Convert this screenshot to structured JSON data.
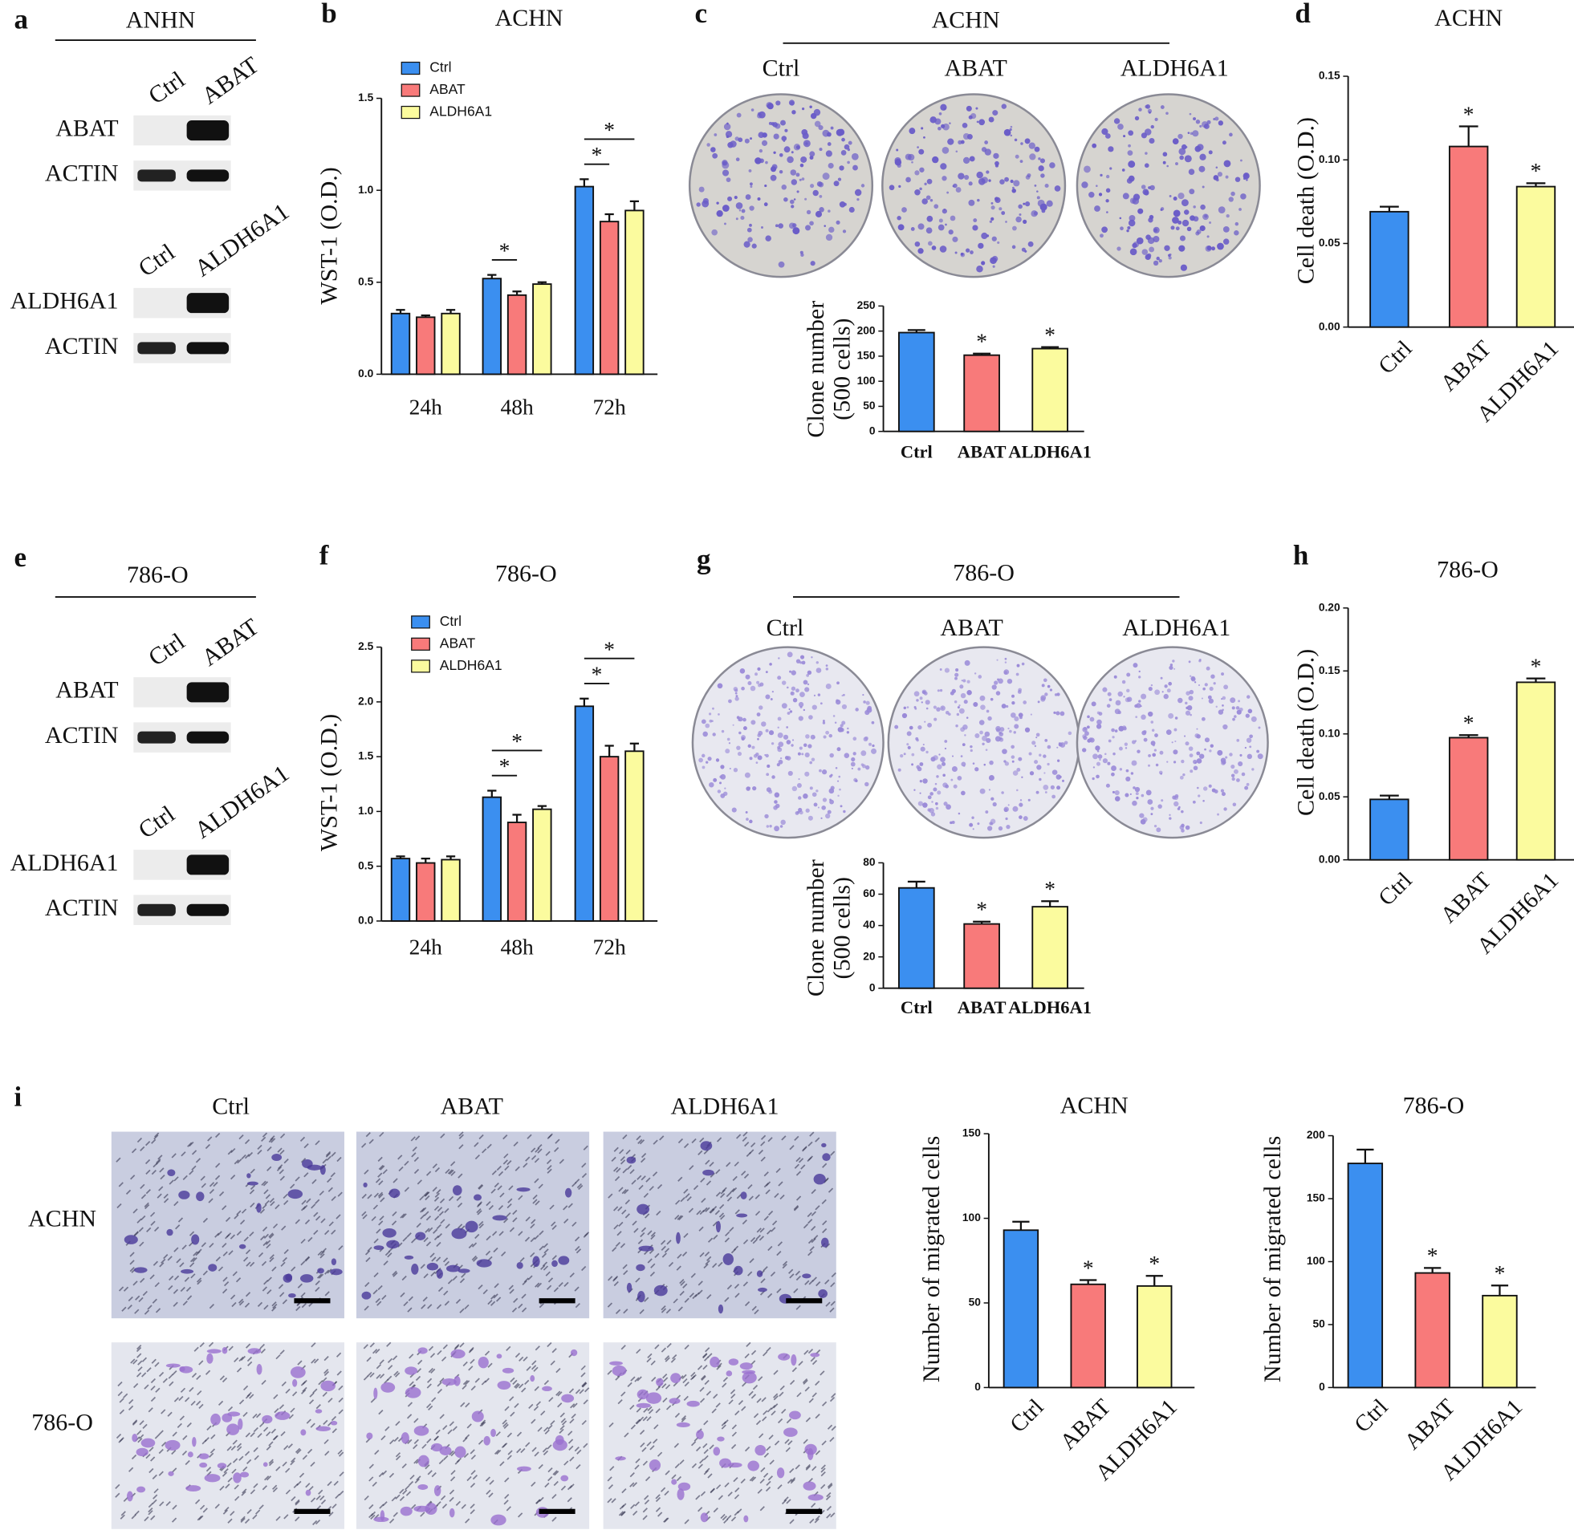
{
  "figure": {
    "letters": [
      "a",
      "b",
      "c",
      "d",
      "e",
      "f",
      "g",
      "h",
      "i"
    ],
    "blots": [
      {
        "title": "ANHN",
        "lanes1": [
          "Ctrl",
          "ABAT"
        ],
        "rows1": [
          "ABAT",
          "ACTIN"
        ],
        "lanes2": [
          "Ctrl",
          "ALDH6A1"
        ],
        "rows2": [
          "ALDH6A1",
          "ACTIN"
        ]
      },
      {
        "title": "786-O",
        "lanes1": [
          "Ctrl",
          "ABAT"
        ],
        "rows1": [
          "ABAT",
          "ACTIN"
        ],
        "lanes2": [
          "Ctrl",
          "ALDH6A1"
        ],
        "rows2": [
          "ALDH6A1",
          "ACTIN"
        ]
      }
    ],
    "plates": [
      {
        "title": "ACHN",
        "labels": [
          "Ctrl",
          "ABAT",
          "ALDH6A1"
        ]
      },
      {
        "title": "786-O",
        "labels": [
          "Ctrl",
          "ABAT",
          "ALDH6A1"
        ]
      }
    ],
    "migration": {
      "columns": [
        "Ctrl",
        "ABAT",
        "ALDH6A1"
      ],
      "rows": [
        "ACHN",
        "786-O"
      ]
    }
  },
  "chart_data": [
    {
      "type": "bar",
      "title": "ACHN",
      "ylabel": "WST-1 (O.D.)",
      "categories": [
        "24h",
        "48h",
        "72h"
      ],
      "series": [
        {
          "name": "Ctrl",
          "color": "#3b8ff0",
          "values": [
            0.33,
            0.52,
            1.02
          ],
          "errors": [
            0.02,
            0.02,
            0.04
          ]
        },
        {
          "name": "ABAT",
          "color": "#f87a7a",
          "values": [
            0.31,
            0.43,
            0.83
          ],
          "errors": [
            0.01,
            0.02,
            0.04
          ]
        },
        {
          "name": "ALDH6A1",
          "color": "#fbfb9e",
          "values": [
            0.33,
            0.49,
            0.89
          ],
          "errors": [
            0.02,
            0.01,
            0.05
          ]
        }
      ],
      "ylim": [
        0,
        1.5
      ],
      "yticks": [
        {
          "value": 0,
          "label": "0.0"
        },
        0.5,
        {
          "value": 1,
          "label": "1.0"
        },
        1.5
      ],
      "legend": "upper left",
      "annotations": [
        {
          "text": "*",
          "category": "48h",
          "series": [
            "Ctrl",
            "ABAT"
          ]
        },
        {
          "text": "*",
          "category": "72h",
          "series": [
            "Ctrl",
            "ABAT"
          ]
        },
        {
          "text": "*",
          "category": "72h",
          "series": [
            "Ctrl",
            "ALDH6A1"
          ]
        }
      ]
    },
    {
      "type": "bar",
      "ylabel": [
        "Clone number",
        "(500 cells)"
      ],
      "categories": [
        "Ctrl",
        "ABAT",
        "ALDH6A1"
      ],
      "values": [
        197,
        152,
        165
      ],
      "errors": [
        5,
        3,
        3
      ],
      "colors": [
        "#3b8ff0",
        "#f87a7a",
        "#fbfb9e"
      ],
      "ylim": [
        0,
        250
      ],
      "yticks": [
        0,
        50,
        100,
        150,
        200,
        250
      ],
      "annotations": [
        {
          "text": "*",
          "category": "ABAT"
        },
        {
          "text": "*",
          "category": "ALDH6A1"
        }
      ]
    },
    {
      "type": "bar",
      "title": "ACHN",
      "ylabel": "Cell death (O.D.)",
      "categories": [
        "Ctrl",
        "ABAT",
        "ALDH6A1"
      ],
      "values": [
        0.069,
        0.108,
        0.084
      ],
      "errors": [
        0.003,
        0.012,
        0.002
      ],
      "colors": [
        "#3b8ff0",
        "#f87a7a",
        "#fbfb9e"
      ],
      "ylim": [
        0,
        0.15
      ],
      "yticks": [
        {
          "value": 0,
          "label": "0.00"
        },
        0.05,
        {
          "value": 0.1,
          "label": "0.10"
        },
        0.15
      ],
      "annotations": [
        {
          "text": "*",
          "category": "ABAT"
        },
        {
          "text": "*",
          "category": "ALDH6A1"
        }
      ]
    },
    {
      "type": "bar",
      "title": "786-O",
      "ylabel": "WST-1 (O.D.)",
      "categories": [
        "24h",
        "48h",
        "72h"
      ],
      "series": [
        {
          "name": "Ctrl",
          "color": "#3b8ff0",
          "values": [
            0.57,
            1.13,
            1.96
          ],
          "errors": [
            0.02,
            0.06,
            0.07
          ]
        },
        {
          "name": "ABAT",
          "color": "#f87a7a",
          "values": [
            0.53,
            0.9,
            1.5
          ],
          "errors": [
            0.04,
            0.07,
            0.1
          ]
        },
        {
          "name": "ALDH6A1",
          "color": "#fbfb9e",
          "values": [
            0.56,
            1.02,
            1.55
          ],
          "errors": [
            0.03,
            0.03,
            0.07
          ]
        }
      ],
      "ylim": [
        0,
        2.5
      ],
      "yticks": [
        {
          "value": 0,
          "label": "0.0"
        },
        0.5,
        {
          "value": 1,
          "label": "1.0"
        },
        1.5,
        {
          "value": 2,
          "label": "2.0"
        },
        2.5
      ],
      "legend": "upper left",
      "annotations": [
        {
          "text": "*",
          "category": "48h",
          "series": [
            "Ctrl",
            "ABAT"
          ]
        },
        {
          "text": "*",
          "category": "48h",
          "series": [
            "Ctrl",
            "ALDH6A1"
          ]
        },
        {
          "text": "*",
          "category": "72h",
          "series": [
            "Ctrl",
            "ABAT"
          ]
        },
        {
          "text": "*",
          "category": "72h",
          "series": [
            "Ctrl",
            "ALDH6A1"
          ]
        }
      ]
    },
    {
      "type": "bar",
      "ylabel": [
        "Clone number",
        "(500 cells)"
      ],
      "categories": [
        "Ctrl",
        "ABAT",
        "ALDH6A1"
      ],
      "values": [
        64,
        41,
        52
      ],
      "errors": [
        4,
        1.5,
        3.5
      ],
      "colors": [
        "#3b8ff0",
        "#f87a7a",
        "#fbfb9e"
      ],
      "ylim": [
        0,
        80
      ],
      "yticks": [
        0,
        20,
        40,
        60,
        80
      ],
      "annotations": [
        {
          "text": "*",
          "category": "ABAT"
        },
        {
          "text": "*",
          "category": "ALDH6A1"
        }
      ]
    },
    {
      "type": "bar",
      "title": "786-O",
      "ylabel": "Cell death (O.D.)",
      "categories": [
        "Ctrl",
        "ABAT",
        "ALDH6A1"
      ],
      "values": [
        0.048,
        0.097,
        0.141
      ],
      "errors": [
        0.003,
        0.002,
        0.003
      ],
      "colors": [
        "#3b8ff0",
        "#f87a7a",
        "#fbfb9e"
      ],
      "ylim": [
        0,
        0.2
      ],
      "yticks": [
        {
          "value": 0,
          "label": "0.00"
        },
        0.05,
        {
          "value": 0.1,
          "label": "0.10"
        },
        0.15,
        {
          "value": 0.2,
          "label": "0.20"
        }
      ],
      "annotations": [
        {
          "text": "*",
          "category": "ABAT"
        },
        {
          "text": "*",
          "category": "ALDH6A1"
        }
      ]
    },
    {
      "type": "bar",
      "title": "ACHN",
      "ylabel": "Number of migrated cells",
      "categories": [
        "Ctrl",
        "ABAT",
        "ALDH6A1"
      ],
      "values": [
        93,
        61,
        60
      ],
      "errors": [
        5,
        2.5,
        6
      ],
      "colors": [
        "#3b8ff0",
        "#f87a7a",
        "#fbfb9e"
      ],
      "ylim": [
        0,
        150
      ],
      "yticks": [
        0,
        50,
        100,
        150
      ],
      "annotations": [
        {
          "text": "*",
          "category": "ABAT"
        },
        {
          "text": "*",
          "category": "ALDH6A1"
        }
      ]
    },
    {
      "type": "bar",
      "title": "786-O",
      "ylabel": "Number of migrated cells",
      "categories": [
        "Ctrl",
        "ABAT",
        "ALDH6A1"
      ],
      "values": [
        178,
        91,
        73
      ],
      "errors": [
        11,
        4,
        8
      ],
      "colors": [
        "#3b8ff0",
        "#f87a7a",
        "#fbfb9e"
      ],
      "ylim": [
        0,
        200
      ],
      "yticks": [
        0,
        50,
        100,
        150,
        200
      ],
      "annotations": [
        {
          "text": "*",
          "category": "ABAT"
        },
        {
          "text": "*",
          "category": "ALDH6A1"
        }
      ]
    }
  ]
}
